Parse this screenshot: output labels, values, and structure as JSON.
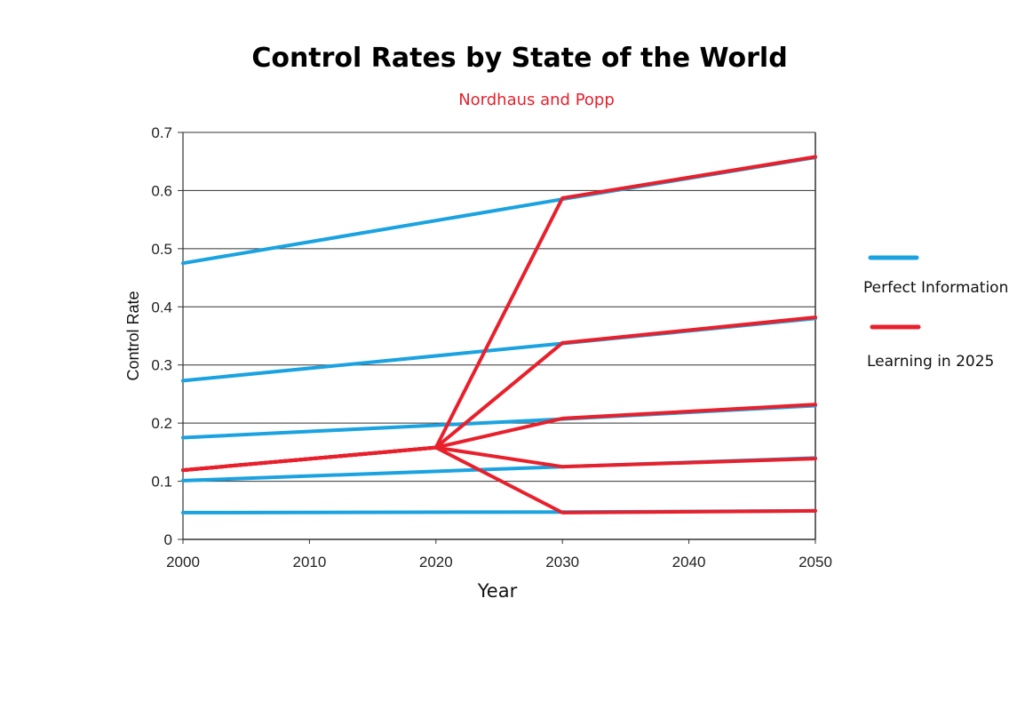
{
  "chart_data": {
    "type": "line",
    "title": "Control Rates by State of the World",
    "subtitle": "Nordhaus and Popp",
    "xlabel": "Year",
    "ylabel": "Control Rate",
    "xlim": [
      2000,
      2050
    ],
    "ylim": [
      0,
      0.7
    ],
    "x_ticks": [
      "2000",
      "2010",
      "2020",
      "2030",
      "2040",
      "2050"
    ],
    "y_ticks": [
      "0",
      "0.1",
      "0.2",
      "0.3",
      "0.4",
      "0.5",
      "0.6",
      "0.7"
    ],
    "grid": true,
    "legend_position": "right",
    "series": [
      {
        "group": "perfect",
        "points": [
          [
            2000,
            0.475
          ],
          [
            2030,
            0.585
          ],
          [
            2050,
            0.657
          ]
        ]
      },
      {
        "group": "perfect",
        "points": [
          [
            2000,
            0.273
          ],
          [
            2030,
            0.337
          ],
          [
            2050,
            0.38
          ]
        ]
      },
      {
        "group": "perfect",
        "points": [
          [
            2000,
            0.175
          ],
          [
            2030,
            0.207
          ],
          [
            2050,
            0.23
          ]
        ]
      },
      {
        "group": "perfect",
        "points": [
          [
            2000,
            0.101
          ],
          [
            2030,
            0.125
          ],
          [
            2050,
            0.14
          ]
        ]
      },
      {
        "group": "perfect",
        "points": [
          [
            2000,
            0.046
          ],
          [
            2030,
            0.047
          ],
          [
            2050,
            0.049
          ]
        ]
      },
      {
        "group": "learning",
        "points": [
          [
            2000,
            0.119
          ],
          [
            2020,
            0.158
          ],
          [
            2030,
            0.587
          ],
          [
            2050,
            0.658
          ]
        ]
      },
      {
        "group": "learning",
        "points": [
          [
            2000,
            0.119
          ],
          [
            2020,
            0.158
          ],
          [
            2030,
            0.338
          ],
          [
            2050,
            0.382
          ]
        ]
      },
      {
        "group": "learning",
        "points": [
          [
            2000,
            0.119
          ],
          [
            2020,
            0.158
          ],
          [
            2030,
            0.208
          ],
          [
            2050,
            0.232
          ]
        ]
      },
      {
        "group": "learning",
        "points": [
          [
            2000,
            0.119
          ],
          [
            2020,
            0.158
          ],
          [
            2030,
            0.125
          ],
          [
            2050,
            0.139
          ]
        ]
      },
      {
        "group": "learning",
        "points": [
          [
            2000,
            0.119
          ],
          [
            2020,
            0.158
          ],
          [
            2030,
            0.046
          ],
          [
            2050,
            0.049
          ]
        ]
      }
    ],
    "legend": [
      {
        "group": "perfect",
        "label": "Perfect Information",
        "color": "#1aa3e0"
      },
      {
        "group": "learning",
        "label": "Learning in 2025",
        "color": "#e8202c"
      }
    ]
  },
  "colors": {
    "perfect": "#1aa3e0",
    "learning": "#e8202c",
    "subtitle": "#e8202c",
    "grid": "#333333"
  }
}
